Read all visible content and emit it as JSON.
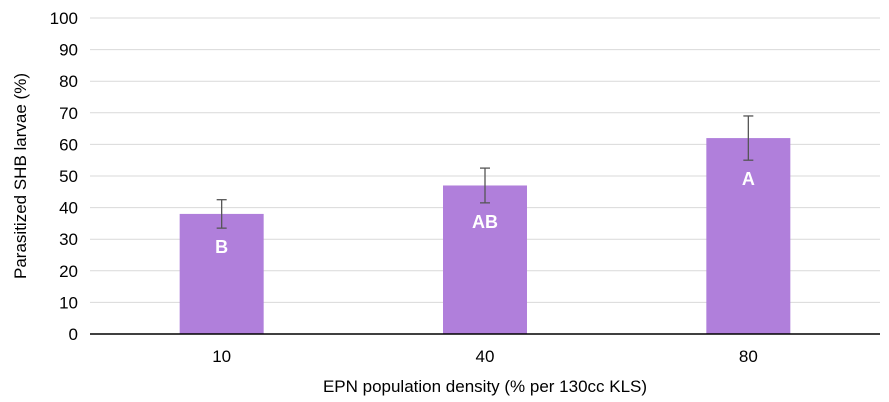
{
  "chart_data": {
    "type": "bar",
    "title": "",
    "xlabel": "EPN population density (% per 130cc KLS)",
    "ylabel": "Parasitized SHB larvae (%)",
    "categories": [
      "10",
      "40",
      "80"
    ],
    "values": [
      38,
      47,
      62
    ],
    "error": [
      4.5,
      5.5,
      7
    ],
    "letters": [
      "B",
      "AB",
      "A"
    ],
    "ylim": [
      0,
      100
    ],
    "yticks": [
      0,
      10,
      20,
      30,
      40,
      50,
      60,
      70,
      80,
      90,
      100
    ],
    "grid": true,
    "bar_color": "#b07fdb",
    "grid_color": "#d9d9d9",
    "axis_color": "#000000",
    "error_color": "#555555"
  }
}
